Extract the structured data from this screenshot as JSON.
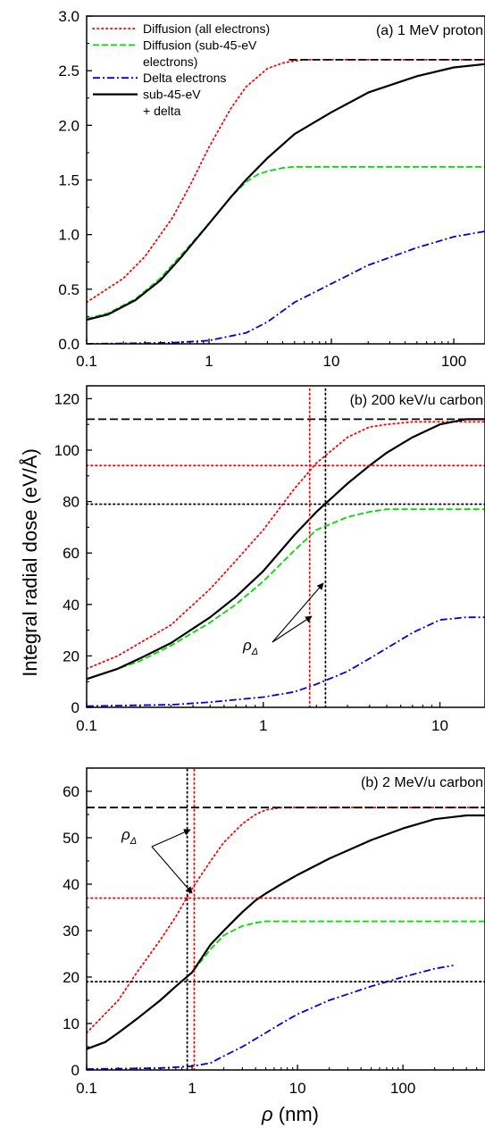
{
  "figure": {
    "ylabel": "Integral radial dose (eV/Å)",
    "xlabel_symbol": "ρ",
    "xlabel_unit": " (nm)"
  },
  "chart_data": [
    {
      "type": "line",
      "panel_label": "(a) 1 MeV proton",
      "xscale": "log",
      "xlim": [
        0.1,
        180
      ],
      "ylim": [
        0,
        3.0
      ],
      "xticks": [
        0.1,
        1,
        10,
        100
      ],
      "xtick_labels": [
        "0.1",
        "1",
        "10",
        "100"
      ],
      "yticks": [
        0,
        0.5,
        1.0,
        1.5,
        2.0,
        2.5,
        3.0
      ],
      "ytick_labels": [
        "0.0",
        "0.5",
        "1.0",
        "1.5",
        "2.0",
        "2.5",
        "3.0"
      ],
      "legend": {
        "position": "top-left",
        "entries": [
          {
            "series": 0,
            "lines": [
              "Diffusion (all electrons)"
            ]
          },
          {
            "series": 1,
            "lines": [
              "Diffusion (sub-45-eV",
              "electrons)"
            ]
          },
          {
            "series": 2,
            "lines": [
              "Delta electrons"
            ]
          },
          {
            "series": 3,
            "lines": [
              "sub-45-eV",
              "+ delta"
            ]
          }
        ]
      },
      "series": [
        {
          "name": "Diffusion (all electrons)",
          "color": "#ff0000",
          "dash": "dotted",
          "x": [
            0.1,
            0.2,
            0.3,
            0.5,
            0.7,
            1,
            1.5,
            2,
            3,
            4,
            5,
            6,
            10,
            30,
            100,
            180
          ],
          "y": [
            0.38,
            0.6,
            0.8,
            1.15,
            1.45,
            1.8,
            2.15,
            2.35,
            2.52,
            2.57,
            2.59,
            2.6,
            2.6,
            2.6,
            2.6,
            2.6
          ]
        },
        {
          "name": "Diffusion (sub-45-eV electrons)",
          "color": "#00dd00",
          "dash": "dashed",
          "x": [
            0.1,
            0.15,
            0.25,
            0.4,
            0.6,
            1,
            1.5,
            2,
            2.5,
            3,
            4,
            5,
            10,
            180
          ],
          "y": [
            0.23,
            0.28,
            0.41,
            0.6,
            0.82,
            1.1,
            1.34,
            1.48,
            1.55,
            1.58,
            1.61,
            1.62,
            1.62,
            1.62
          ]
        },
        {
          "name": "Delta electrons",
          "color": "#0000dd",
          "dash": "dashdot",
          "x": [
            0.1,
            0.5,
            1,
            2,
            3,
            5,
            10,
            20,
            50,
            100,
            180
          ],
          "y": [
            0.0,
            0.01,
            0.03,
            0.1,
            0.2,
            0.38,
            0.55,
            0.72,
            0.88,
            0.98,
            1.03
          ]
        },
        {
          "name": "sub-45-eV + delta",
          "color": "#000000",
          "dash": "solid",
          "x": [
            0.1,
            0.15,
            0.25,
            0.4,
            0.6,
            1,
            1.5,
            2,
            3,
            5,
            10,
            20,
            50,
            100,
            180
          ],
          "y": [
            0.22,
            0.27,
            0.4,
            0.58,
            0.8,
            1.1,
            1.34,
            1.5,
            1.7,
            1.92,
            2.12,
            2.3,
            2.45,
            2.53,
            2.56
          ]
        },
        {
          "name": "",
          "color": "#000000",
          "dash": "longdash",
          "x": [
            4.5,
            180
          ],
          "y": [
            2.6,
            2.6
          ]
        }
      ]
    },
    {
      "type": "line",
      "panel_label": "(b) 200 keV/u carbon",
      "xscale": "log",
      "xlim": [
        0.1,
        18
      ],
      "ylim": [
        0,
        125
      ],
      "xticks": [
        0.1,
        1,
        10
      ],
      "xtick_labels": [
        "0.1",
        "1",
        "10"
      ],
      "yticks": [
        0,
        20,
        40,
        60,
        80,
        100,
        120
      ],
      "ytick_labels": [
        "0",
        "20",
        "40",
        "60",
        "80",
        "100",
        "120"
      ],
      "annotation": {
        "symbol": "ρ",
        "sub": "Δ"
      },
      "series": [
        {
          "name": "",
          "color": "#ff0000",
          "dash": "dotted",
          "x": [
            0.1,
            0.15,
            0.2,
            0.3,
            0.5,
            0.7,
            1,
            1.5,
            2,
            3,
            4,
            5,
            7,
            10,
            18
          ],
          "y": [
            15,
            20,
            25,
            32,
            46,
            57,
            69,
            85,
            95,
            105,
            109,
            110,
            111,
            111,
            111
          ]
        },
        {
          "name": "",
          "color": "#00dd00",
          "dash": "dashed",
          "x": [
            0.1,
            0.15,
            0.2,
            0.3,
            0.5,
            0.7,
            1,
            1.5,
            2,
            3,
            4,
            5,
            7,
            10,
            18
          ],
          "y": [
            11,
            15,
            18,
            24,
            33,
            40,
            49,
            61,
            69,
            74,
            76,
            77,
            77,
            77,
            77
          ]
        },
        {
          "name": "",
          "color": "#0000dd",
          "dash": "dashdot",
          "x": [
            0.1,
            0.3,
            0.5,
            1,
            1.5,
            2,
            3,
            4,
            5,
            7,
            10,
            14,
            18
          ],
          "y": [
            0.5,
            1,
            2,
            4,
            6,
            9,
            14,
            19,
            23,
            29,
            34,
            35,
            35
          ]
        },
        {
          "name": "",
          "color": "#000000",
          "dash": "solid",
          "x": [
            0.1,
            0.15,
            0.2,
            0.3,
            0.5,
            0.7,
            1,
            1.5,
            2,
            3,
            4,
            5,
            7,
            10,
            14,
            18
          ],
          "y": [
            11,
            15,
            19,
            25,
            35,
            43,
            53,
            67,
            76,
            87,
            94,
            99,
            105,
            110,
            112,
            112
          ]
        },
        {
          "name": "",
          "color": "#000000",
          "dash": "longdash",
          "x": [
            0.1,
            18
          ],
          "y": [
            112,
            112
          ]
        },
        {
          "name": "",
          "color": "#ff0000",
          "dash": "dotted",
          "x": [
            0.1,
            18
          ],
          "y": [
            94,
            94
          ]
        },
        {
          "name": "",
          "color": "#000000",
          "dash": "dotted",
          "x": [
            0.1,
            18
          ],
          "y": [
            79,
            79
          ]
        },
        {
          "name": "",
          "color": "#ff0000",
          "dash": "dotted",
          "x": [
            1.83,
            1.83
          ],
          "y": [
            0,
            125
          ]
        },
        {
          "name": "",
          "color": "#000000",
          "dash": "dotted",
          "x": [
            2.25,
            2.25
          ],
          "y": [
            0,
            125
          ]
        }
      ]
    },
    {
      "type": "line",
      "panel_label": "(b) 2 MeV/u carbon",
      "xscale": "log",
      "xlim": [
        0.1,
        600
      ],
      "ylim": [
        0,
        65
      ],
      "xticks": [
        0.1,
        1,
        10,
        100
      ],
      "xtick_labels": [
        "0.1",
        "1",
        "10",
        "100"
      ],
      "yticks": [
        0,
        10,
        20,
        30,
        40,
        50,
        60
      ],
      "ytick_labels": [
        "0",
        "10",
        "20",
        "30",
        "40",
        "50",
        "60"
      ],
      "annotation": {
        "symbol": "ρ",
        "sub": "Δ"
      },
      "series": [
        {
          "name": "",
          "color": "#ff0000",
          "dash": "dotted",
          "x": [
            0.1,
            0.2,
            0.3,
            0.5,
            0.7,
            1,
            1.5,
            2,
            3,
            4,
            5,
            7,
            10,
            100,
            600
          ],
          "y": [
            8,
            15,
            21,
            28,
            33,
            39,
            45,
            49,
            53,
            55,
            56,
            56.5,
            56.5,
            56.5,
            56.5
          ]
        },
        {
          "name": "",
          "color": "#00dd00",
          "dash": "dashed",
          "x": [
            0.1,
            0.15,
            0.2,
            0.3,
            0.5,
            0.7,
            1,
            1.5,
            2,
            3,
            4,
            5,
            7,
            600
          ],
          "y": [
            4.5,
            6,
            8,
            11,
            15,
            18,
            21,
            26,
            29,
            31,
            31.7,
            32,
            32,
            32
          ]
        },
        {
          "name": "",
          "color": "#0000dd",
          "dash": "dashdot",
          "x": [
            0.1,
            0.5,
            1,
            1.5,
            2,
            3,
            5,
            7,
            10,
            20,
            50,
            100,
            200,
            300
          ],
          "y": [
            0.2,
            0.4,
            0.8,
            1.5,
            3,
            5,
            8,
            10,
            12,
            15,
            18,
            20,
            21.8,
            22.5
          ]
        },
        {
          "name": "",
          "color": "#000000",
          "dash": "solid",
          "x": [
            0.1,
            0.15,
            0.2,
            0.3,
            0.5,
            0.7,
            1,
            1.5,
            2,
            3,
            4,
            5,
            7,
            10,
            20,
            50,
            100,
            200,
            400,
            600
          ],
          "y": [
            4.5,
            6,
            8,
            11,
            15,
            18,
            21,
            27,
            30,
            34,
            36.5,
            38,
            40,
            42,
            45.5,
            49.5,
            52,
            54,
            54.8,
            54.8
          ]
        },
        {
          "name": "",
          "color": "#000000",
          "dash": "longdash",
          "x": [
            0.1,
            600
          ],
          "y": [
            56.5,
            56.5
          ]
        },
        {
          "name": "",
          "color": "#ff0000",
          "dash": "dotted",
          "x": [
            0.1,
            600
          ],
          "y": [
            37,
            37
          ]
        },
        {
          "name": "",
          "color": "#000000",
          "dash": "dotted",
          "x": [
            0.1,
            600
          ],
          "y": [
            19,
            19
          ]
        },
        {
          "name": "",
          "color": "#ff0000",
          "dash": "dotted",
          "x": [
            1.05,
            1.05
          ],
          "y": [
            0,
            65
          ]
        },
        {
          "name": "",
          "color": "#000000",
          "dash": "dotted",
          "x": [
            0.9,
            0.9
          ],
          "y": [
            0,
            65
          ]
        }
      ]
    }
  ]
}
